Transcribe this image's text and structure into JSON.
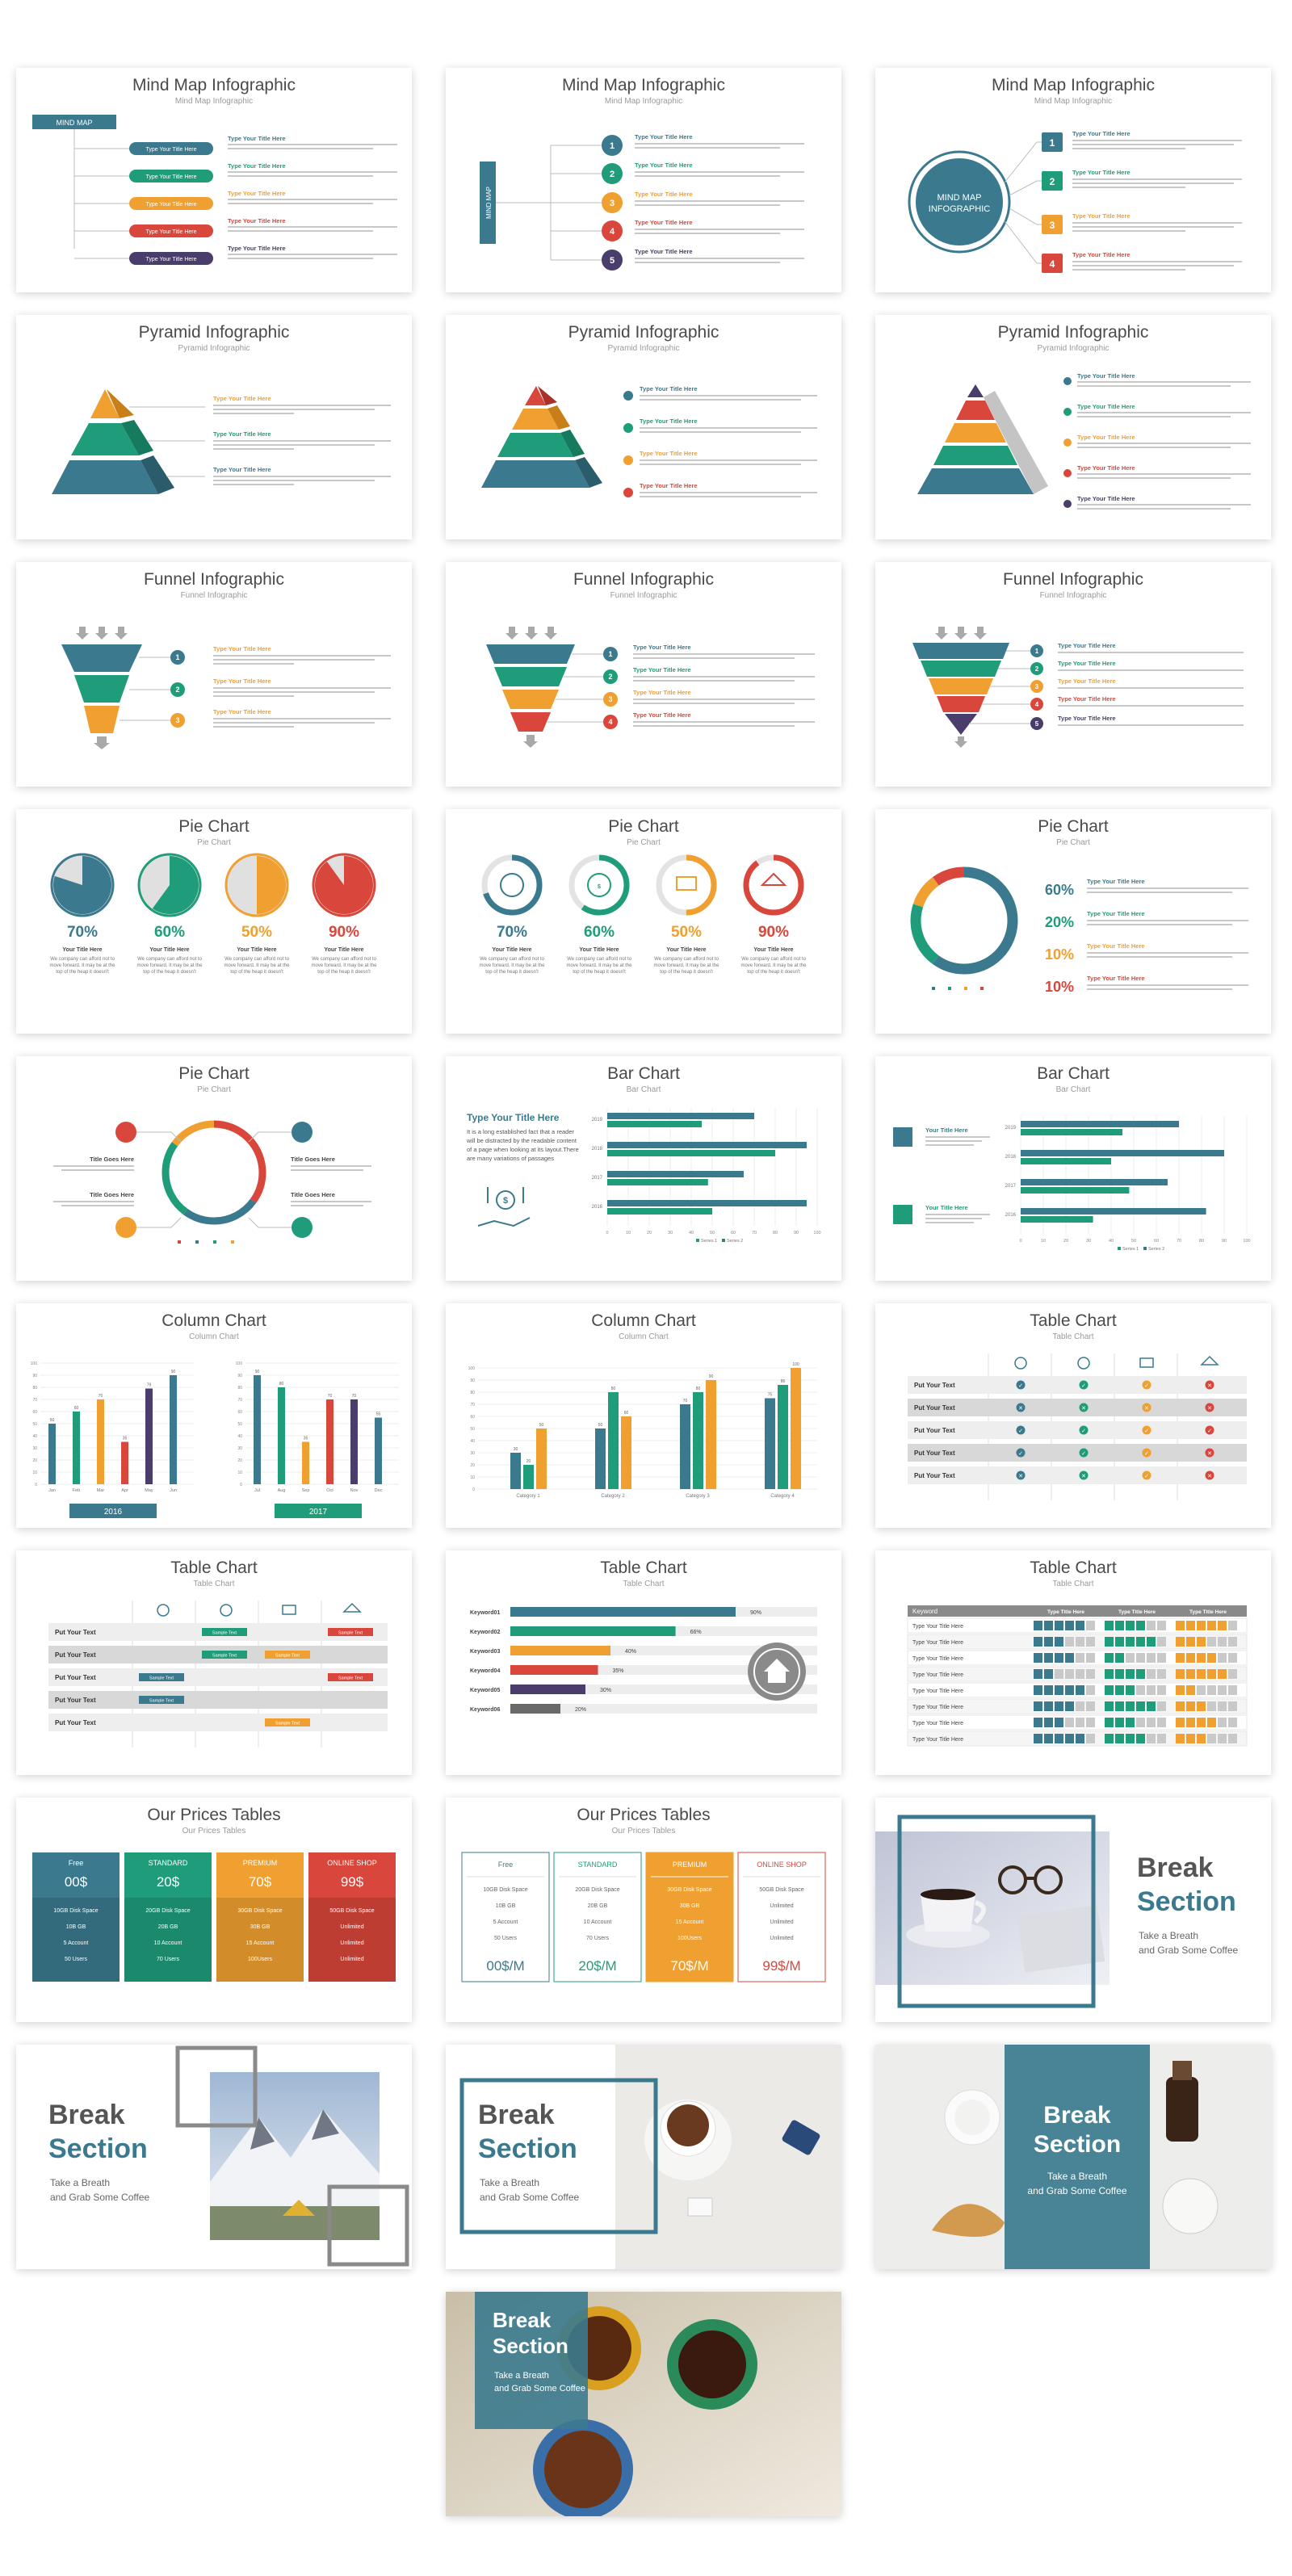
{
  "colors": {
    "teal_blue": "#3b7a8e",
    "green": "#1f9d7a",
    "orange": "#f0a030",
    "red": "#d9463b",
    "purple": "#4a3d6b",
    "gray": "#6a6a6a",
    "light_gray": "#e3e3e3"
  },
  "slides": {
    "mindmap1": {
      "title": "Mind Map Infographic",
      "subtitle": "Mind Map Infographic",
      "root": "MIND MAP",
      "pill": "Type Your Title Here",
      "item_title": "Type Your Title Here"
    },
    "mindmap2": {
      "title": "Mind Map Infographic",
      "subtitle": "Mind Map Infographic",
      "root": "MIND MAP",
      "nums": [
        "1",
        "2",
        "3",
        "4",
        "5"
      ],
      "item_title": "Type Your Title Here"
    },
    "mindmap3": {
      "title": "Mind Map Infographic",
      "subtitle": "Mind Map Infographic",
      "root_line1": "MIND MAP",
      "root_line2": "INFOGRAPHIC",
      "nums": [
        "1",
        "2",
        "3",
        "4"
      ],
      "item_title": "Type Your Title Here"
    },
    "pyramid1": {
      "title": "Pyramid Infographic",
      "subtitle": "Pyramid Infographic",
      "item_title": "Type Your Title Here"
    },
    "pyramid2": {
      "title": "Pyramid Infographic",
      "subtitle": "Pyramid Infographic",
      "item_title": "Type Your Title Here"
    },
    "pyramid3": {
      "title": "Pyramid Infographic",
      "subtitle": "Pyramid Infographic",
      "item_title": "Type Your Title Here"
    },
    "funnel1": {
      "title": "Funnel Infographic",
      "subtitle": "Funnel Infographic",
      "nums": [
        "1",
        "2",
        "3"
      ],
      "item_title": "Type Your Title Here"
    },
    "funnel2": {
      "title": "Funnel Infographic",
      "subtitle": "Funnel Infographic",
      "nums": [
        "1",
        "2",
        "3",
        "4"
      ],
      "item_title": "Type Your Title Here"
    },
    "funnel3": {
      "title": "Funnel Infographic",
      "subtitle": "Funnel Infographic",
      "nums": [
        "1",
        "2",
        "3",
        "4",
        "5"
      ],
      "item_title": "Type Your Title Here"
    },
    "pie1": {
      "title": "Pie Chart",
      "subtitle": "Pie Chart",
      "values": [
        "70%",
        "60%",
        "50%",
        "90%"
      ],
      "item_title": "Your Title Here",
      "desc1": "We company can afford not to",
      "desc2": "move forward. It may be at the",
      "desc3": "top of the heap it doesn't"
    },
    "pie2": {
      "title": "Pie Chart",
      "subtitle": "Pie Chart",
      "values": [
        "70%",
        "60%",
        "50%",
        "90%"
      ],
      "item_title": "Your Title Here",
      "desc1": "We company can afford not to",
      "desc2": "move forward. It may be at the",
      "desc3": "top of the heap it doesn't"
    },
    "pie3": {
      "title": "Pie Chart",
      "subtitle": "Pie Chart",
      "values": [
        "60%",
        "20%",
        "10%",
        "10%"
      ],
      "item_title": "Type Your Title Here"
    },
    "pie4": {
      "title": "Pie Chart",
      "subtitle": "Pie Chart",
      "item_title": "Title Goes Here"
    },
    "bar1": {
      "title": "Bar Chart",
      "subtitle": "Bar Chart",
      "heading": "Type Your Title Here",
      "p1": "It is a long established fact that a reader",
      "p2": "will be distracted by the readable content",
      "p3": "of a page when looking at its layout.There",
      "p4": "are many variations of passages",
      "years": [
        "2016",
        "2017",
        "2018",
        "2019"
      ],
      "legend": [
        "Series 1",
        "Series 2"
      ]
    },
    "bar2": {
      "title": "Bar Chart",
      "subtitle": "Bar Chart",
      "item_title": "Your Title Here",
      "years": [
        "2016",
        "2017",
        "2018",
        "2019"
      ],
      "legend": [
        "Series 1",
        "Series 2"
      ]
    },
    "column1": {
      "title": "Column Chart",
      "subtitle": "Column Chart",
      "year1": "2016",
      "year2": "2017",
      "months1": [
        "Jan",
        "Feb",
        "Mar",
        "Apr",
        "May",
        "Jun"
      ],
      "months2": [
        "Jul",
        "Aug",
        "Sep",
        "Oct",
        "Nov",
        "Dec"
      ]
    },
    "column2": {
      "title": "Column Chart",
      "subtitle": "Column Chart",
      "categories": [
        "Category 1",
        "Category 2",
        "Category 3",
        "Category 4"
      ]
    },
    "table1": {
      "title": "Table Chart",
      "subtitle": "Table Chart",
      "row_label": "Put Your Text"
    },
    "table2": {
      "title": "Table Chart",
      "subtitle": "Table Chart",
      "row_label": "Put Your Text",
      "tag": "Sample Text"
    },
    "table3": {
      "title": "Table Chart",
      "subtitle": "Table Chart",
      "keywords": [
        "Keyword01",
        "Keyword02",
        "Keyword03",
        "Keyword04",
        "Keyword05",
        "Keyword06"
      ],
      "values": [
        "90%",
        "66%",
        "40%",
        "35%",
        "30%",
        "20%"
      ]
    },
    "table4": {
      "title": "Table Chart",
      "subtitle": "Table Chart",
      "header": "Keyword",
      "col": "Type Title Here",
      "row": "Type Your Title Here"
    },
    "prices1": {
      "title": "Our Prices Tables",
      "subtitle": "Our Prices Tables",
      "plans": [
        "Free",
        "STANDARD",
        "PREMIUM",
        "ONLINE SHOP"
      ],
      "prices": [
        "00$",
        "20$",
        "70$",
        "99$"
      ],
      "space": [
        "10GB Disk Space",
        "20GB Disk Space",
        "30GB Disk Space",
        "50GB Disk Space"
      ],
      "gb": [
        "10B GB",
        "20B GB",
        "30B GB",
        "Unlimited"
      ],
      "acct": [
        "5 Account",
        "10 Account",
        "15 Account",
        "Unlimited"
      ],
      "users": [
        "50 Users",
        "70 Users",
        "100Users",
        "Unlimited"
      ]
    },
    "prices2": {
      "title": "Our Prices Tables",
      "subtitle": "Our Prices Tables",
      "plans": [
        "Free",
        "STANDARD",
        "PREMIUM",
        "ONLINE SHOP"
      ],
      "prices": [
        "00$/M",
        "20$/M",
        "70$/M",
        "99$/M"
      ],
      "space": [
        "10GB Disk Space",
        "20GB Disk Space",
        "30GB Disk Space",
        "50GB Disk Space"
      ],
      "gb": [
        "10B GB",
        "20B GB",
        "30B GB",
        "Unlimited"
      ],
      "acct": [
        "5 Account",
        "10 Account",
        "15 Account",
        "Unlimited"
      ],
      "users": [
        "50 Users",
        "70 Users",
        "100Users",
        "Unlimited"
      ]
    },
    "break": {
      "line1": "Break",
      "line2": "Section",
      "tag1": "Take a Breath",
      "tag2": "and Grab Some Coffee"
    }
  }
}
